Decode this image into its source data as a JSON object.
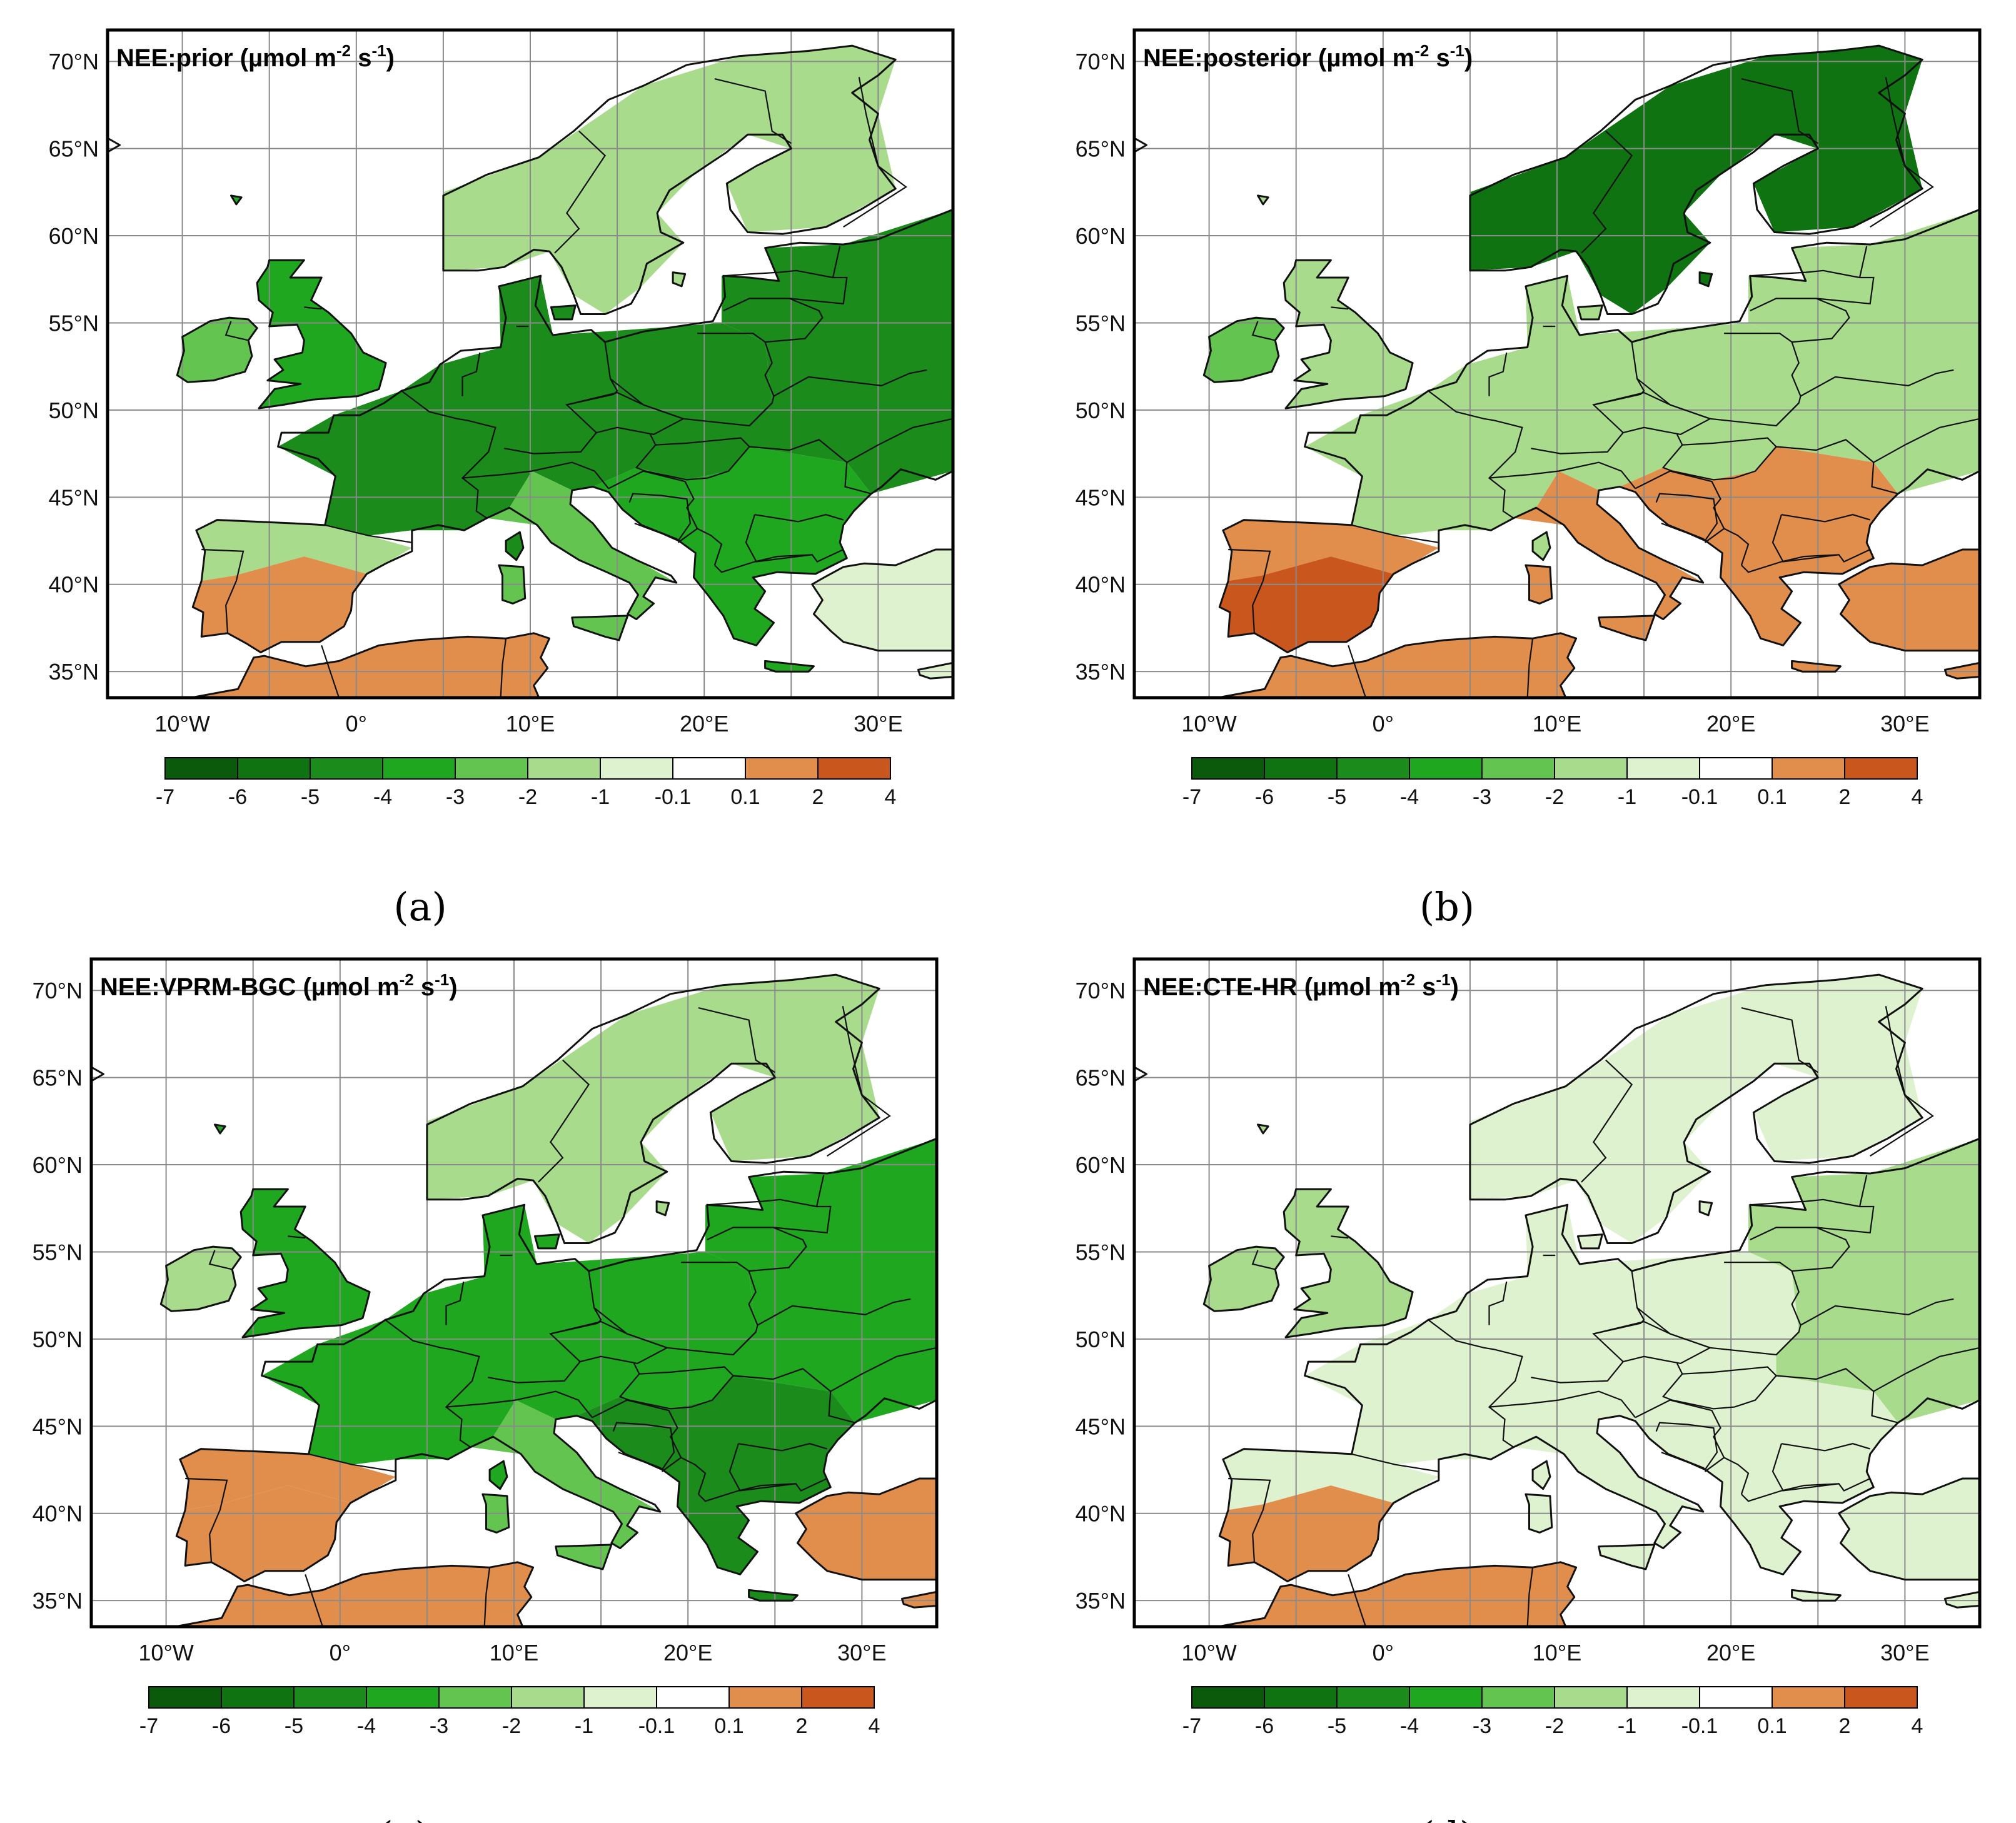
{
  "colors": {
    "land_base": "#ffffff",
    "sea": "#ffffff",
    "bins": [
      "#0b5a0b",
      "#0f7312",
      "#1b8b1c",
      "#1fa71f",
      "#64c450",
      "#a8db8c",
      "#dff2cf",
      "#ffffff",
      "#e18e4d",
      "#c9571d"
    ]
  },
  "colorbar": {
    "ticks": [
      "-7",
      "-6",
      "-5",
      "-4",
      "-3",
      "-2",
      "-1",
      "-0.1",
      "0.1",
      "2",
      "4"
    ]
  },
  "axes": {
    "lat_labels": [
      "70°N",
      "65°N",
      "60°N",
      "55°N",
      "50°N",
      "45°N",
      "40°N",
      "35°N"
    ],
    "lat_values": [
      70,
      65,
      60,
      55,
      50,
      45,
      40,
      35
    ],
    "lon_labels": [
      "10°W",
      "0°",
      "10°E",
      "20°E",
      "30°E"
    ],
    "lon_values": [
      -10,
      0,
      10,
      20,
      30
    ]
  },
  "panels": [
    {
      "letter": "(a)",
      "title": "NEE:prior (µmol m",
      "title_sup1": "-2",
      "title_mid": " s",
      "title_sup2": "-1",
      "title_end": ")",
      "regions": {
        "north": 5,
        "central": 2,
        "east": 2,
        "iberia": 5,
        "iberia_south": 8,
        "africa": 8,
        "italy": 4,
        "balkans": 3,
        "turkey": 6,
        "uk": 3,
        "ireland": 4
      }
    },
    {
      "letter": "(b)",
      "title": "NEE:posterior (µmol m",
      "title_sup1": "-2",
      "title_mid": " s",
      "title_sup2": "-1",
      "title_end": ")",
      "regions": {
        "north": 1,
        "central": 5,
        "east": 5,
        "iberia": 8,
        "iberia_south": 9,
        "africa": 8,
        "italy": 8,
        "balkans": 8,
        "turkey": 8,
        "uk": 5,
        "ireland": 4
      }
    },
    {
      "letter": "(c)",
      "title": "NEE:VPRM-BGC (µmol m",
      "title_sup1": "-2",
      "title_mid": " s",
      "title_sup2": "-1",
      "title_end": ")",
      "regions": {
        "north": 5,
        "central": 3,
        "east": 3,
        "iberia": 8,
        "iberia_south": 8,
        "africa": 8,
        "italy": 4,
        "balkans": 2,
        "turkey": 8,
        "uk": 3,
        "ireland": 5
      }
    },
    {
      "letter": "(d)",
      "title": "NEE:CTE-HR (µmol m",
      "title_sup1": "-2",
      "title_mid": " s",
      "title_sup2": "-1",
      "title_end": ")",
      "regions": {
        "north": 6,
        "central": 6,
        "east": 5,
        "iberia": 6,
        "iberia_south": 8,
        "africa": 8,
        "italy": 6,
        "balkans": 6,
        "turkey": 6,
        "uk": 5,
        "ireland": 5
      }
    }
  ]
}
